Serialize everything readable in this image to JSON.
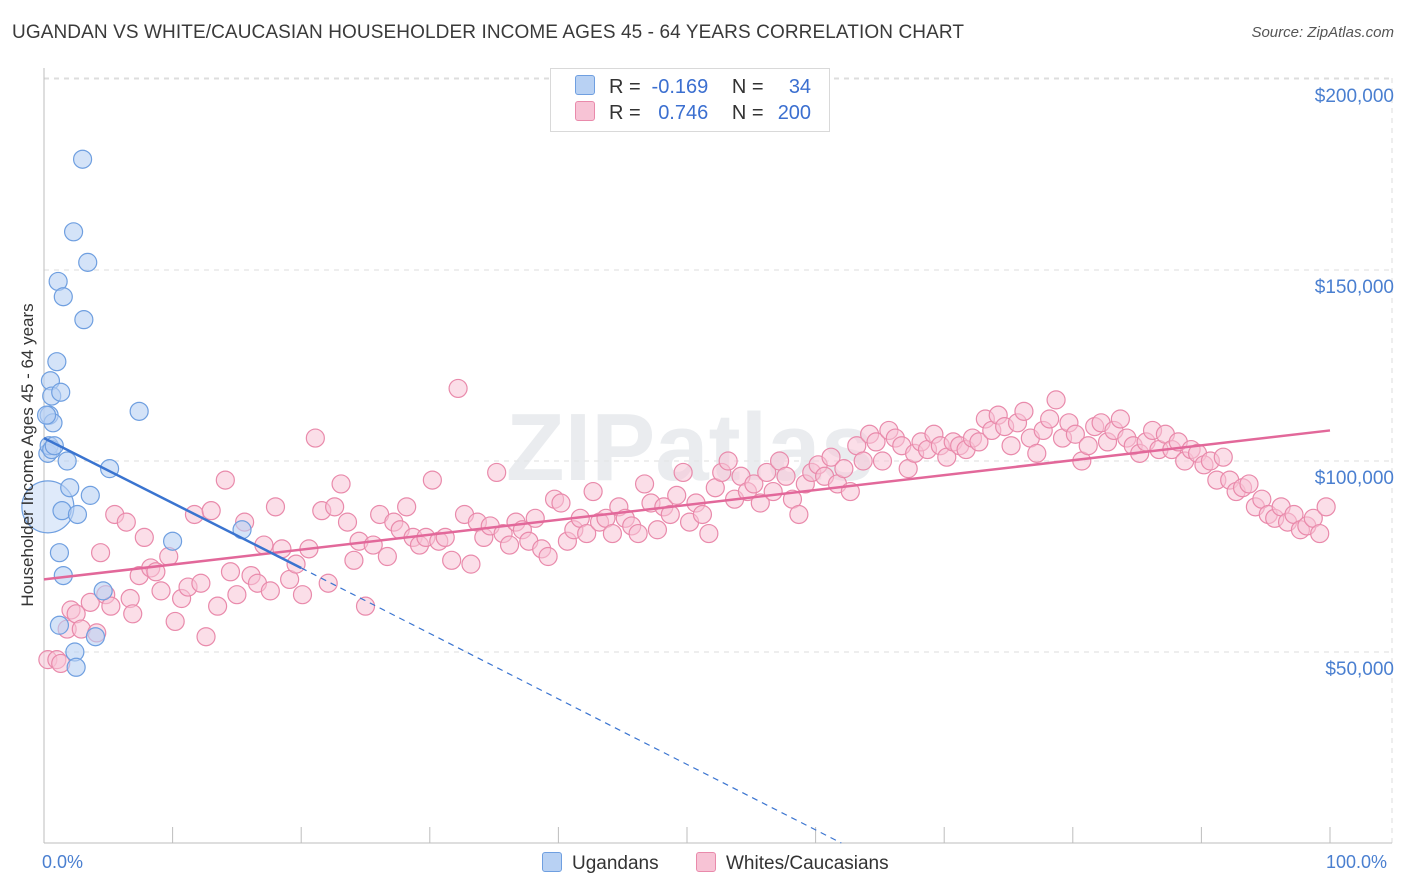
{
  "header": {
    "title": "UGANDAN VS WHITE/CAUCASIAN HOUSEHOLDER INCOME AGES 45 - 64 YEARS CORRELATION CHART",
    "source": "Source: ZipAtlas.com"
  },
  "legend": {
    "rows": [
      {
        "r_label": "R =",
        "r_value": "-0.169",
        "n_label": "N =",
        "n_value": "34",
        "color": "#a9c7f0"
      },
      {
        "r_label": "R =",
        "r_value": "0.746",
        "n_label": "N =",
        "n_value": "200",
        "color": "#f5b8cc"
      }
    ]
  },
  "bottom_legend": {
    "items": [
      {
        "label": "Ugandans",
        "color": "#a9c7f0"
      },
      {
        "label": "Whites/Caucasians",
        "color": "#f5b8cc"
      }
    ]
  },
  "watermark": "ZIPatlas",
  "colors": {
    "ugandan_fill": "#b8d1f3",
    "ugandan_stroke": "#6f9fe0",
    "ugandan_line": "#3a74d0",
    "white_fill": "#f7c3d5",
    "white_stroke": "#e98aab",
    "white_line": "#e2689a",
    "axis_text": "#4a7fd0",
    "grid": "#dddddd"
  },
  "chart_data": {
    "type": "scatter",
    "title": "UGANDAN VS WHITE/CAUCASIAN HOUSEHOLDER INCOME AGES 45 - 64 YEARS CORRELATION CHART",
    "xlabel": "",
    "ylabel": "Householder Income Ages 45 - 64 years",
    "xlim": [
      0,
      100
    ],
    "ylim": [
      0,
      210000
    ],
    "x_tick_labels": [
      "0.0%",
      "100.0%"
    ],
    "y_ticks": [
      50000,
      100000,
      150000,
      200000
    ],
    "y_tick_labels": [
      "$50,000",
      "$100,000",
      "$150,000",
      "$200,000"
    ],
    "grid": true,
    "legend_position": "top-center",
    "series": [
      {
        "name": "Ugandans",
        "r": -0.169,
        "n": 34,
        "trend": {
          "x": [
            0,
            20
          ],
          "y": [
            106000,
            72000
          ],
          "dashed_extension_to": [
            62,
            0
          ]
        },
        "points": [
          [
            0.3,
            88000
          ],
          [
            0.3,
            102000
          ],
          [
            0.4,
            104000
          ],
          [
            0.4,
            112000
          ],
          [
            0.5,
            121000
          ],
          [
            0.6,
            117000
          ],
          [
            0.6,
            103000
          ],
          [
            0.7,
            110000
          ],
          [
            0.8,
            104000
          ],
          [
            1.0,
            126000
          ],
          [
            1.1,
            147000
          ],
          [
            1.2,
            57000
          ],
          [
            1.2,
            76000
          ],
          [
            1.3,
            118000
          ],
          [
            1.4,
            87000
          ],
          [
            1.5,
            70000
          ],
          [
            1.5,
            143000
          ],
          [
            1.8,
            100000
          ],
          [
            2.0,
            93000
          ],
          [
            2.3,
            160000
          ],
          [
            2.4,
            50000
          ],
          [
            2.5,
            46000
          ],
          [
            2.6,
            86000
          ],
          [
            3.0,
            179000
          ],
          [
            3.1,
            137000
          ],
          [
            3.4,
            152000
          ],
          [
            3.6,
            91000
          ],
          [
            4.0,
            54000
          ],
          [
            4.6,
            66000
          ],
          [
            5.1,
            98000
          ],
          [
            7.4,
            113000
          ],
          [
            10.0,
            79000
          ],
          [
            15.4,
            82000
          ],
          [
            0.2,
            112000
          ]
        ]
      },
      {
        "name": "Whites/Caucasians",
        "r": 0.746,
        "n": 200,
        "trend": {
          "x": [
            0,
            100
          ],
          "y": [
            69000,
            108000
          ]
        },
        "points": [
          [
            0.3,
            48000
          ],
          [
            1.0,
            48000
          ],
          [
            1.3,
            47000
          ],
          [
            1.8,
            56000
          ],
          [
            2.1,
            61000
          ],
          [
            2.5,
            60000
          ],
          [
            2.9,
            56000
          ],
          [
            3.6,
            63000
          ],
          [
            4.1,
            55000
          ],
          [
            4.4,
            76000
          ],
          [
            4.8,
            65000
          ],
          [
            5.2,
            62000
          ],
          [
            5.5,
            86000
          ],
          [
            6.4,
            84000
          ],
          [
            6.7,
            64000
          ],
          [
            6.9,
            60000
          ],
          [
            7.4,
            70000
          ],
          [
            7.8,
            80000
          ],
          [
            8.3,
            72000
          ],
          [
            8.7,
            71000
          ],
          [
            9.1,
            66000
          ],
          [
            9.7,
            75000
          ],
          [
            10.2,
            58000
          ],
          [
            10.7,
            64000
          ],
          [
            11.2,
            67000
          ],
          [
            11.7,
            86000
          ],
          [
            12.2,
            68000
          ],
          [
            12.6,
            54000
          ],
          [
            13.0,
            87000
          ],
          [
            13.5,
            62000
          ],
          [
            14.1,
            95000
          ],
          [
            14.5,
            71000
          ],
          [
            15.0,
            65000
          ],
          [
            15.6,
            84000
          ],
          [
            16.1,
            70000
          ],
          [
            16.6,
            68000
          ],
          [
            17.1,
            78000
          ],
          [
            17.6,
            66000
          ],
          [
            18.0,
            88000
          ],
          [
            18.5,
            77000
          ],
          [
            19.1,
            69000
          ],
          [
            19.6,
            73000
          ],
          [
            20.1,
            65000
          ],
          [
            20.6,
            77000
          ],
          [
            21.1,
            106000
          ],
          [
            21.6,
            87000
          ],
          [
            22.1,
            68000
          ],
          [
            22.6,
            88000
          ],
          [
            23.1,
            94000
          ],
          [
            23.6,
            84000
          ],
          [
            24.1,
            74000
          ],
          [
            24.5,
            79000
          ],
          [
            25.0,
            62000
          ],
          [
            25.6,
            78000
          ],
          [
            26.1,
            86000
          ],
          [
            26.7,
            75000
          ],
          [
            27.2,
            84000
          ],
          [
            27.7,
            82000
          ],
          [
            28.2,
            88000
          ],
          [
            28.7,
            80000
          ],
          [
            29.2,
            78000
          ],
          [
            29.7,
            80000
          ],
          [
            30.2,
            95000
          ],
          [
            30.7,
            79000
          ],
          [
            31.2,
            80000
          ],
          [
            31.7,
            74000
          ],
          [
            32.2,
            119000
          ],
          [
            32.7,
            86000
          ],
          [
            33.2,
            73000
          ],
          [
            33.7,
            84000
          ],
          [
            34.2,
            80000
          ],
          [
            34.7,
            83000
          ],
          [
            35.2,
            97000
          ],
          [
            35.7,
            81000
          ],
          [
            36.2,
            78000
          ],
          [
            36.7,
            84000
          ],
          [
            37.2,
            82000
          ],
          [
            37.7,
            79000
          ],
          [
            38.2,
            85000
          ],
          [
            38.7,
            77000
          ],
          [
            39.2,
            75000
          ],
          [
            39.7,
            90000
          ],
          [
            40.2,
            89000
          ],
          [
            40.7,
            79000
          ],
          [
            41.2,
            82000
          ],
          [
            41.7,
            85000
          ],
          [
            42.2,
            81000
          ],
          [
            42.7,
            92000
          ],
          [
            43.2,
            84000
          ],
          [
            43.7,
            85000
          ],
          [
            44.2,
            81000
          ],
          [
            44.7,
            88000
          ],
          [
            45.2,
            85000
          ],
          [
            45.7,
            83000
          ],
          [
            46.2,
            81000
          ],
          [
            46.7,
            94000
          ],
          [
            47.2,
            89000
          ],
          [
            47.7,
            82000
          ],
          [
            48.2,
            88000
          ],
          [
            48.7,
            86000
          ],
          [
            49.2,
            91000
          ],
          [
            49.7,
            97000
          ],
          [
            50.2,
            84000
          ],
          [
            50.7,
            89000
          ],
          [
            51.2,
            86000
          ],
          [
            51.7,
            81000
          ],
          [
            52.2,
            93000
          ],
          [
            52.7,
            97000
          ],
          [
            53.2,
            100000
          ],
          [
            53.7,
            90000
          ],
          [
            54.2,
            96000
          ],
          [
            54.7,
            92000
          ],
          [
            55.2,
            94000
          ],
          [
            55.7,
            89000
          ],
          [
            56.2,
            97000
          ],
          [
            56.7,
            92000
          ],
          [
            57.2,
            100000
          ],
          [
            57.7,
            96000
          ],
          [
            58.2,
            90000
          ],
          [
            58.7,
            86000
          ],
          [
            59.2,
            94000
          ],
          [
            59.7,
            97000
          ],
          [
            60.2,
            99000
          ],
          [
            60.7,
            96000
          ],
          [
            61.2,
            101000
          ],
          [
            61.7,
            94000
          ],
          [
            62.2,
            98000
          ],
          [
            62.7,
            92000
          ],
          [
            63.2,
            104000
          ],
          [
            63.7,
            100000
          ],
          [
            64.2,
            107000
          ],
          [
            64.7,
            105000
          ],
          [
            65.2,
            100000
          ],
          [
            65.7,
            108000
          ],
          [
            66.2,
            106000
          ],
          [
            66.7,
            104000
          ],
          [
            67.2,
            98000
          ],
          [
            67.7,
            102000
          ],
          [
            68.2,
            105000
          ],
          [
            68.7,
            103000
          ],
          [
            69.2,
            107000
          ],
          [
            69.7,
            104000
          ],
          [
            70.2,
            101000
          ],
          [
            70.7,
            105000
          ],
          [
            71.2,
            104000
          ],
          [
            71.7,
            103000
          ],
          [
            72.2,
            106000
          ],
          [
            72.7,
            105000
          ],
          [
            73.2,
            111000
          ],
          [
            73.7,
            108000
          ],
          [
            74.2,
            112000
          ],
          [
            74.7,
            109000
          ],
          [
            75.2,
            104000
          ],
          [
            75.7,
            110000
          ],
          [
            76.2,
            113000
          ],
          [
            76.7,
            106000
          ],
          [
            77.2,
            102000
          ],
          [
            77.7,
            108000
          ],
          [
            78.2,
            111000
          ],
          [
            78.7,
            116000
          ],
          [
            79.2,
            106000
          ],
          [
            79.7,
            110000
          ],
          [
            80.2,
            107000
          ],
          [
            80.7,
            100000
          ],
          [
            81.2,
            104000
          ],
          [
            81.7,
            109000
          ],
          [
            82.2,
            110000
          ],
          [
            82.7,
            105000
          ],
          [
            83.2,
            108000
          ],
          [
            83.7,
            111000
          ],
          [
            84.2,
            106000
          ],
          [
            84.7,
            104000
          ],
          [
            85.2,
            102000
          ],
          [
            85.7,
            105000
          ],
          [
            86.2,
            108000
          ],
          [
            86.7,
            103000
          ],
          [
            87.2,
            107000
          ],
          [
            87.7,
            103000
          ],
          [
            88.2,
            105000
          ],
          [
            88.7,
            100000
          ],
          [
            89.2,
            103000
          ],
          [
            89.7,
            102000
          ],
          [
            90.2,
            99000
          ],
          [
            90.7,
            100000
          ],
          [
            91.2,
            95000
          ],
          [
            91.7,
            101000
          ],
          [
            92.2,
            95000
          ],
          [
            92.7,
            92000
          ],
          [
            93.2,
            93000
          ],
          [
            93.7,
            94000
          ],
          [
            94.2,
            88000
          ],
          [
            94.7,
            90000
          ],
          [
            95.2,
            86000
          ],
          [
            95.7,
            85000
          ],
          [
            96.2,
            88000
          ],
          [
            96.7,
            84000
          ],
          [
            97.2,
            86000
          ],
          [
            97.7,
            82000
          ],
          [
            98.2,
            83000
          ],
          [
            98.7,
            85000
          ],
          [
            99.2,
            81000
          ],
          [
            99.7,
            88000
          ]
        ]
      }
    ]
  }
}
